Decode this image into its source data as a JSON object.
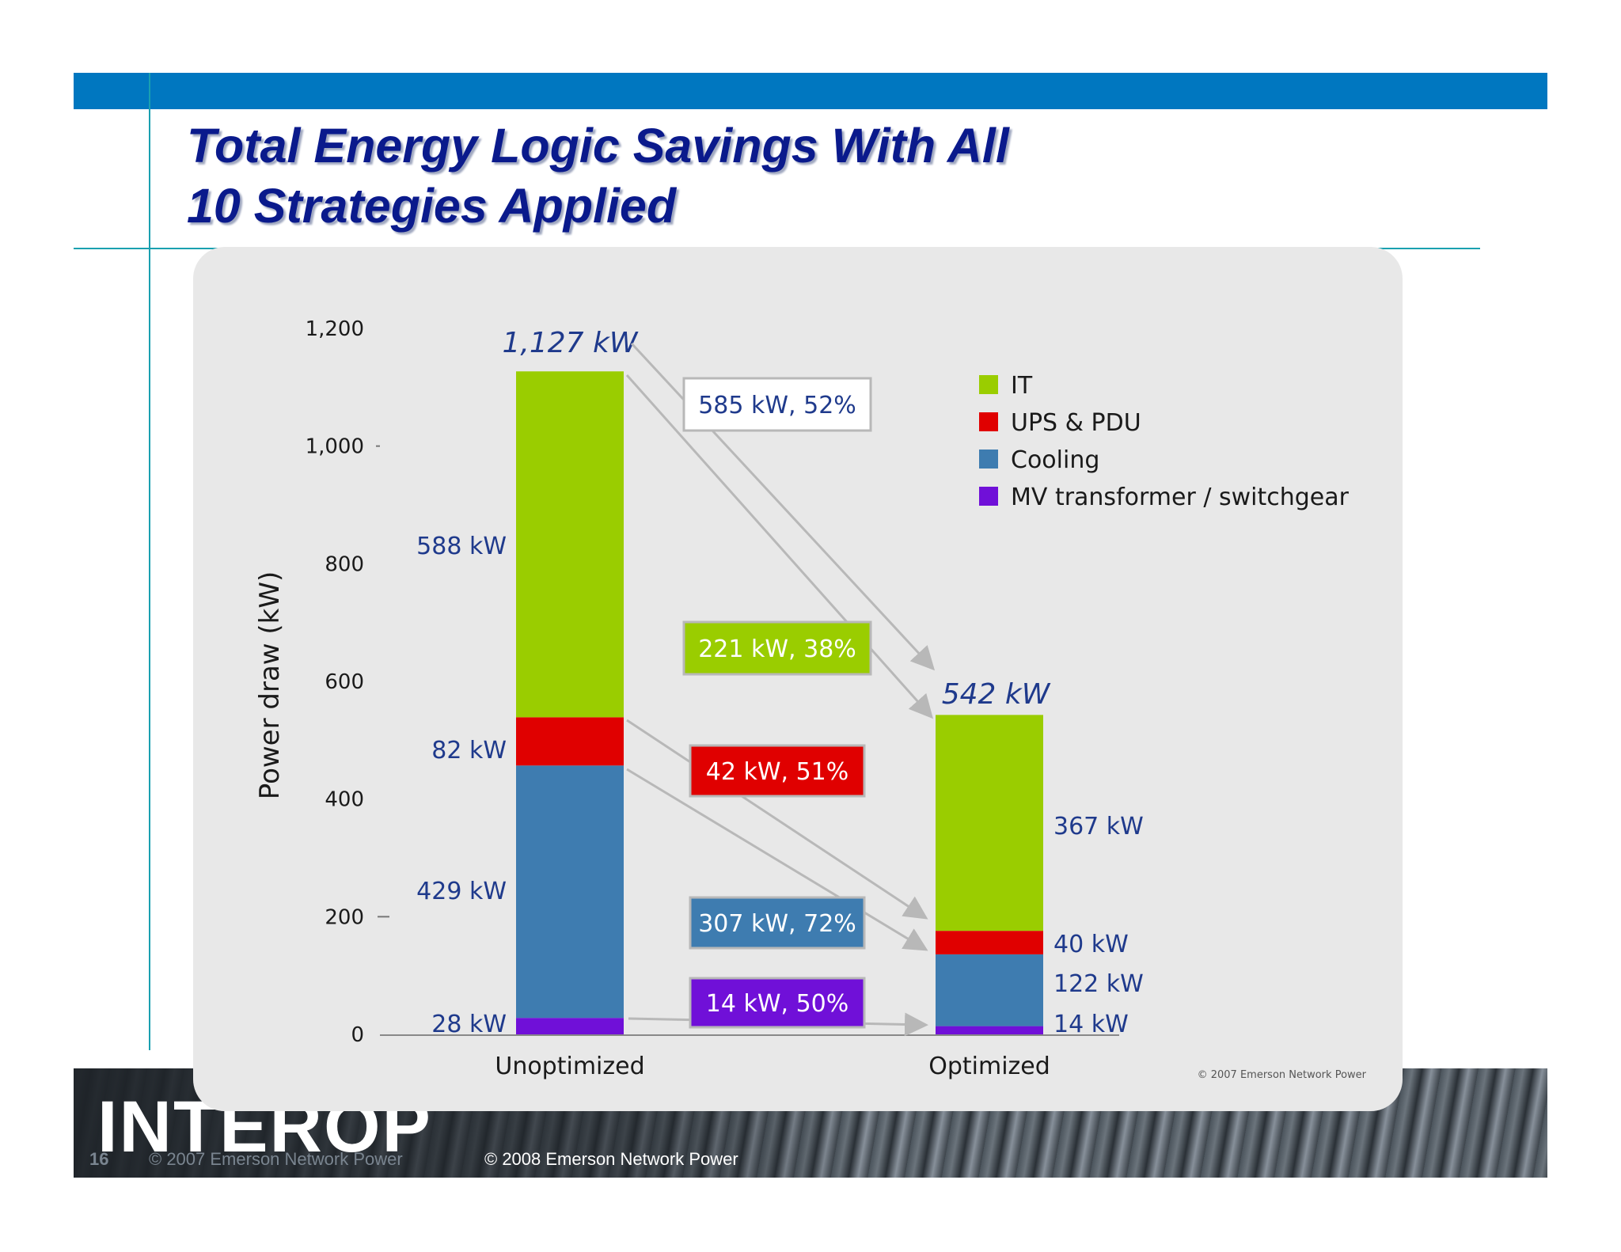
{
  "slide": {
    "title_line1": "Total Energy Logic Savings With All",
    "title_line2": "10 Strategies Applied",
    "page_number": "16",
    "copyright_old": "© 2007 Emerson Network Power",
    "copyright_new": "© 2008 Emerson Network Power",
    "logo_text": "INTEROP",
    "colors": {
      "top_bar": "#0077c0",
      "title": "#0a1a8c",
      "rule_lines": "#1aa0b0"
    }
  },
  "chart_data": {
    "type": "bar",
    "stacked": true,
    "categories": [
      "Unoptimized",
      "Optimized"
    ],
    "ylabel": "Power draw (kW)",
    "ylim": [
      0,
      1200
    ],
    "yticks": [
      0,
      200,
      400,
      600,
      800,
      1000,
      1200
    ],
    "ytick_labels": [
      "0",
      "200",
      "400",
      "600",
      "800",
      "1,000",
      "1,200"
    ],
    "totals": [
      "1,127 kW",
      "542 kW"
    ],
    "series": [
      {
        "name": "MV transformer / switchgear",
        "color": "#7010d8",
        "values": [
          28,
          14
        ],
        "labels": [
          "28 kW",
          "14 kW"
        ]
      },
      {
        "name": "Cooling",
        "color": "#3e7cb0",
        "values": [
          429,
          122
        ],
        "labels": [
          "429 kW",
          "122 kW"
        ]
      },
      {
        "name": "UPS & PDU",
        "color": "#e00000",
        "values": [
          82,
          40
        ],
        "labels": [
          "82 kW",
          "40 kW"
        ]
      },
      {
        "name": "IT",
        "color": "#9acd00",
        "values": [
          588,
          367
        ],
        "labels": [
          "588 kW",
          "367 kW"
        ]
      }
    ],
    "legend_order": [
      "IT",
      "UPS & PDU",
      "Cooling",
      "MV transformer / switchgear"
    ],
    "legend_position": "top-right",
    "savings": [
      {
        "label": "585 kW, 52%",
        "series": "Total",
        "value": 585,
        "percent": 52,
        "fill": "#ffffff",
        "text_color": "#1f3a8c"
      },
      {
        "label": "221 kW, 38%",
        "series": "IT",
        "value": 221,
        "percent": 38,
        "fill": "#9acd00",
        "text_color": "#ffffff"
      },
      {
        "label": "42 kW, 51%",
        "series": "UPS & PDU",
        "value": 42,
        "percent": 51,
        "fill": "#e00000",
        "text_color": "#ffffff"
      },
      {
        "label": "307 kW, 72%",
        "series": "Cooling",
        "value": 307,
        "percent": 72,
        "fill": "#3e7cb0",
        "text_color": "#ffffff"
      },
      {
        "label": "14 kW, 50%",
        "series": "MV transformer / switchgear",
        "value": 14,
        "percent": 50,
        "fill": "#7010d8",
        "text_color": "#ffffff"
      }
    ],
    "source_note": "© 2007 Emerson Network Power",
    "grid": false
  }
}
